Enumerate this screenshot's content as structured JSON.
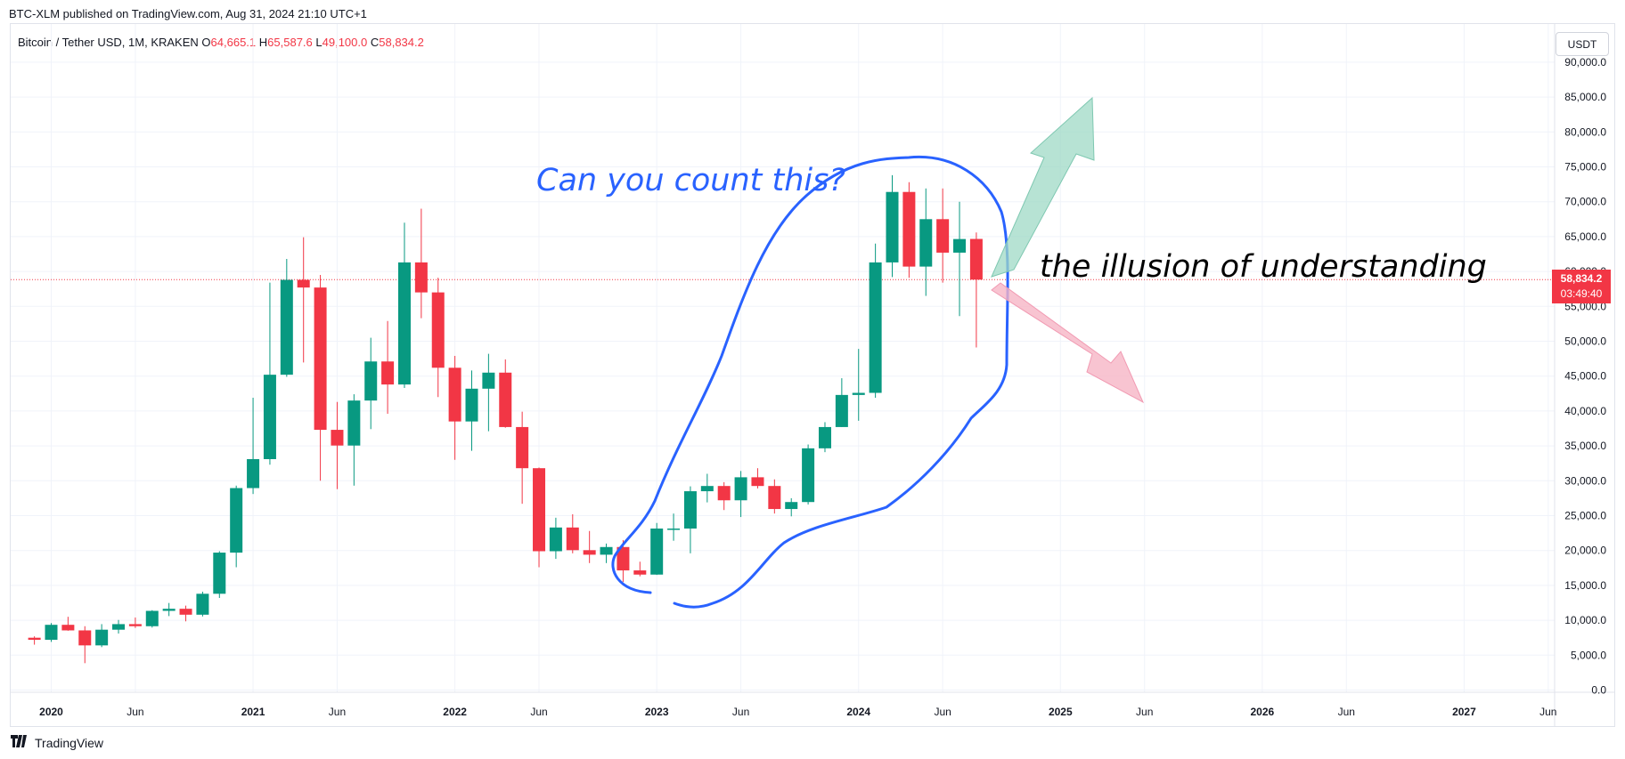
{
  "header": {
    "published": "BTC-XLM published on TradingView.com, Aug 31, 2024 21:10 UTC+1",
    "symbol": "Bitcoin / Tether USD, 1M, KRAKEN",
    "o_label": "O",
    "o_value": "64,665.1",
    "h_label": "H",
    "h_value": "65,587.6",
    "l_label": "L",
    "l_value": "49,100.0",
    "c_label": "C",
    "c_value": "58,834.2",
    "currency": "USDT"
  },
  "price_badge": {
    "price": "58,834.2",
    "countdown": "03:49:40"
  },
  "annotations": {
    "question": "Can you count this?",
    "illusion": "the illusion of understanding"
  },
  "footer": {
    "brand": "TradingView",
    "logo": "tv-logo-icon"
  },
  "colors": {
    "up": "#089981",
    "down": "#f23645",
    "marker": "#2962ff",
    "arrow_up": "#9fd9c6",
    "arrow_down": "#f6b5c5"
  },
  "chart_data": {
    "type": "candlestick",
    "interval": "1M",
    "ylim": [
      0,
      90000
    ],
    "y_ticks": [
      {
        "value": 0,
        "label": "0.0"
      },
      {
        "value": 5000,
        "label": "5,000.0"
      },
      {
        "value": 10000,
        "label": "10,000.0"
      },
      {
        "value": 15000,
        "label": "15,000.0"
      },
      {
        "value": 20000,
        "label": "20,000.0"
      },
      {
        "value": 25000,
        "label": "25,000.0"
      },
      {
        "value": 30000,
        "label": "30,000.0"
      },
      {
        "value": 35000,
        "label": "35,000.0"
      },
      {
        "value": 40000,
        "label": "40,000.0"
      },
      {
        "value": 45000,
        "label": "45,000.0"
      },
      {
        "value": 50000,
        "label": "50,000.0"
      },
      {
        "value": 55000,
        "label": "55,000.0"
      },
      {
        "value": 60000,
        "label": "60,000.0"
      },
      {
        "value": 65000,
        "label": "65,000.0"
      },
      {
        "value": 70000,
        "label": "70,000.0"
      },
      {
        "value": 75000,
        "label": "75,000.0"
      },
      {
        "value": 80000,
        "label": "80,000.0"
      },
      {
        "value": 85000,
        "label": "85,000.0"
      },
      {
        "value": 90000,
        "label": "90,000.0"
      }
    ],
    "x_ticks": [
      {
        "month": "2020-01",
        "label": "2020",
        "bold": true
      },
      {
        "month": "2020-06",
        "label": "Jun",
        "bold": false
      },
      {
        "month": "2021-01",
        "label": "2021",
        "bold": true
      },
      {
        "month": "2021-06",
        "label": "Jun",
        "bold": false
      },
      {
        "month": "2022-01",
        "label": "2022",
        "bold": true
      },
      {
        "month": "2022-06",
        "label": "Jun",
        "bold": false
      },
      {
        "month": "2023-01",
        "label": "2023",
        "bold": true
      },
      {
        "month": "2023-06",
        "label": "Jun",
        "bold": false
      },
      {
        "month": "2024-01",
        "label": "2024",
        "bold": true
      },
      {
        "month": "2024-06",
        "label": "Jun",
        "bold": false
      },
      {
        "month": "2025-01",
        "label": "2025",
        "bold": true
      },
      {
        "month": "2025-06",
        "label": "Jun",
        "bold": false
      },
      {
        "month": "2026-01",
        "label": "2026",
        "bold": true
      },
      {
        "month": "2026-06",
        "label": "Jun",
        "bold": false
      },
      {
        "month": "2027-01",
        "label": "2027",
        "bold": true
      },
      {
        "month": "2027-06",
        "label": "Jun",
        "bold": false
      }
    ],
    "last_price": 58834.2,
    "candles": [
      {
        "t": "2019-12",
        "o": 7500,
        "h": 7700,
        "l": 6500,
        "c": 7200
      },
      {
        "t": "2020-01",
        "o": 7200,
        "h": 9600,
        "l": 6900,
        "c": 9350
      },
      {
        "t": "2020-02",
        "o": 9350,
        "h": 10500,
        "l": 8500,
        "c": 8550
      },
      {
        "t": "2020-03",
        "o": 8550,
        "h": 9150,
        "l": 3850,
        "c": 6400
      },
      {
        "t": "2020-04",
        "o": 6400,
        "h": 9450,
        "l": 6150,
        "c": 8650
      },
      {
        "t": "2020-05",
        "o": 8650,
        "h": 10050,
        "l": 8100,
        "c": 9450
      },
      {
        "t": "2020-06",
        "o": 9450,
        "h": 10400,
        "l": 8900,
        "c": 9150
      },
      {
        "t": "2020-07",
        "o": 9150,
        "h": 11450,
        "l": 8950,
        "c": 11350
      },
      {
        "t": "2020-08",
        "o": 11350,
        "h": 12480,
        "l": 10600,
        "c": 11650
      },
      {
        "t": "2020-09",
        "o": 11650,
        "h": 12100,
        "l": 9850,
        "c": 10800
      },
      {
        "t": "2020-10",
        "o": 10800,
        "h": 14100,
        "l": 10550,
        "c": 13800
      },
      {
        "t": "2020-11",
        "o": 13800,
        "h": 19900,
        "l": 13200,
        "c": 19700
      },
      {
        "t": "2020-12",
        "o": 19700,
        "h": 29300,
        "l": 17600,
        "c": 28950
      },
      {
        "t": "2021-01",
        "o": 28950,
        "h": 41900,
        "l": 28100,
        "c": 33100
      },
      {
        "t": "2021-02",
        "o": 33100,
        "h": 58400,
        "l": 32300,
        "c": 45200
      },
      {
        "t": "2021-03",
        "o": 45200,
        "h": 61800,
        "l": 44900,
        "c": 58800
      },
      {
        "t": "2021-04",
        "o": 58800,
        "h": 64900,
        "l": 46950,
        "c": 57700
      },
      {
        "t": "2021-05",
        "o": 57700,
        "h": 59500,
        "l": 30000,
        "c": 37300
      },
      {
        "t": "2021-06",
        "o": 37300,
        "h": 41300,
        "l": 28800,
        "c": 35050
      },
      {
        "t": "2021-07",
        "o": 35050,
        "h": 42400,
        "l": 29300,
        "c": 41500
      },
      {
        "t": "2021-08",
        "o": 41500,
        "h": 50500,
        "l": 37400,
        "c": 47100
      },
      {
        "t": "2021-09",
        "o": 47100,
        "h": 52900,
        "l": 39600,
        "c": 43800
      },
      {
        "t": "2021-10",
        "o": 43800,
        "h": 67000,
        "l": 43300,
        "c": 61300
      },
      {
        "t": "2021-11",
        "o": 61300,
        "h": 69000,
        "l": 53300,
        "c": 57000
      },
      {
        "t": "2021-12",
        "o": 57000,
        "h": 59100,
        "l": 42000,
        "c": 46200
      },
      {
        "t": "2022-01",
        "o": 46200,
        "h": 47900,
        "l": 33000,
        "c": 38500
      },
      {
        "t": "2022-02",
        "o": 38500,
        "h": 45800,
        "l": 34300,
        "c": 43200
      },
      {
        "t": "2022-03",
        "o": 43200,
        "h": 48200,
        "l": 37100,
        "c": 45500
      },
      {
        "t": "2022-04",
        "o": 45500,
        "h": 47400,
        "l": 37600,
        "c": 37700
      },
      {
        "t": "2022-05",
        "o": 37700,
        "h": 39900,
        "l": 26700,
        "c": 31800
      },
      {
        "t": "2022-06",
        "o": 31800,
        "h": 31900,
        "l": 17600,
        "c": 19900
      },
      {
        "t": "2022-07",
        "o": 19900,
        "h": 24700,
        "l": 18800,
        "c": 23300
      },
      {
        "t": "2022-08",
        "o": 23300,
        "h": 25200,
        "l": 19600,
        "c": 20050
      },
      {
        "t": "2022-09",
        "o": 20050,
        "h": 22800,
        "l": 18200,
        "c": 19400
      },
      {
        "t": "2022-10",
        "o": 19400,
        "h": 21000,
        "l": 18200,
        "c": 20500
      },
      {
        "t": "2022-11",
        "o": 20500,
        "h": 21500,
        "l": 15500,
        "c": 17150
      },
      {
        "t": "2022-12",
        "o": 17150,
        "h": 18400,
        "l": 16300,
        "c": 16550
      },
      {
        "t": "2023-01",
        "o": 16550,
        "h": 23950,
        "l": 16500,
        "c": 23150
      },
      {
        "t": "2023-02",
        "o": 23150,
        "h": 25300,
        "l": 21400,
        "c": 23150
      },
      {
        "t": "2023-03",
        "o": 23150,
        "h": 29200,
        "l": 19600,
        "c": 28500
      },
      {
        "t": "2023-04",
        "o": 28500,
        "h": 31000,
        "l": 26900,
        "c": 29250
      },
      {
        "t": "2023-05",
        "o": 29250,
        "h": 29800,
        "l": 25800,
        "c": 27200
      },
      {
        "t": "2023-06",
        "o": 27200,
        "h": 31400,
        "l": 24800,
        "c": 30500
      },
      {
        "t": "2023-07",
        "o": 30500,
        "h": 31800,
        "l": 28900,
        "c": 29250
      },
      {
        "t": "2023-08",
        "o": 29250,
        "h": 30200,
        "l": 25300,
        "c": 25950
      },
      {
        "t": "2023-09",
        "o": 25950,
        "h": 27500,
        "l": 24900,
        "c": 26950
      },
      {
        "t": "2023-10",
        "o": 26950,
        "h": 35200,
        "l": 26600,
        "c": 34650
      },
      {
        "t": "2023-11",
        "o": 34650,
        "h": 38400,
        "l": 34100,
        "c": 37700
      },
      {
        "t": "2023-12",
        "o": 37700,
        "h": 44700,
        "l": 37700,
        "c": 42300
      },
      {
        "t": "2024-01",
        "o": 42300,
        "h": 48900,
        "l": 38600,
        "c": 42600
      },
      {
        "t": "2024-02",
        "o": 42600,
        "h": 64000,
        "l": 41900,
        "c": 61300
      },
      {
        "t": "2024-03",
        "o": 61300,
        "h": 73800,
        "l": 59200,
        "c": 71400
      },
      {
        "t": "2024-04",
        "o": 71400,
        "h": 72800,
        "l": 59100,
        "c": 60700
      },
      {
        "t": "2024-05",
        "o": 60700,
        "h": 71900,
        "l": 56500,
        "c": 67500
      },
      {
        "t": "2024-06",
        "o": 67500,
        "h": 71900,
        "l": 58400,
        "c": 62700
      },
      {
        "t": "2024-07",
        "o": 62700,
        "h": 70000,
        "l": 53600,
        "c": 64650
      },
      {
        "t": "2024-08",
        "o": 64665.1,
        "h": 65587.6,
        "l": 49100.0,
        "c": 58834.2
      }
    ]
  }
}
